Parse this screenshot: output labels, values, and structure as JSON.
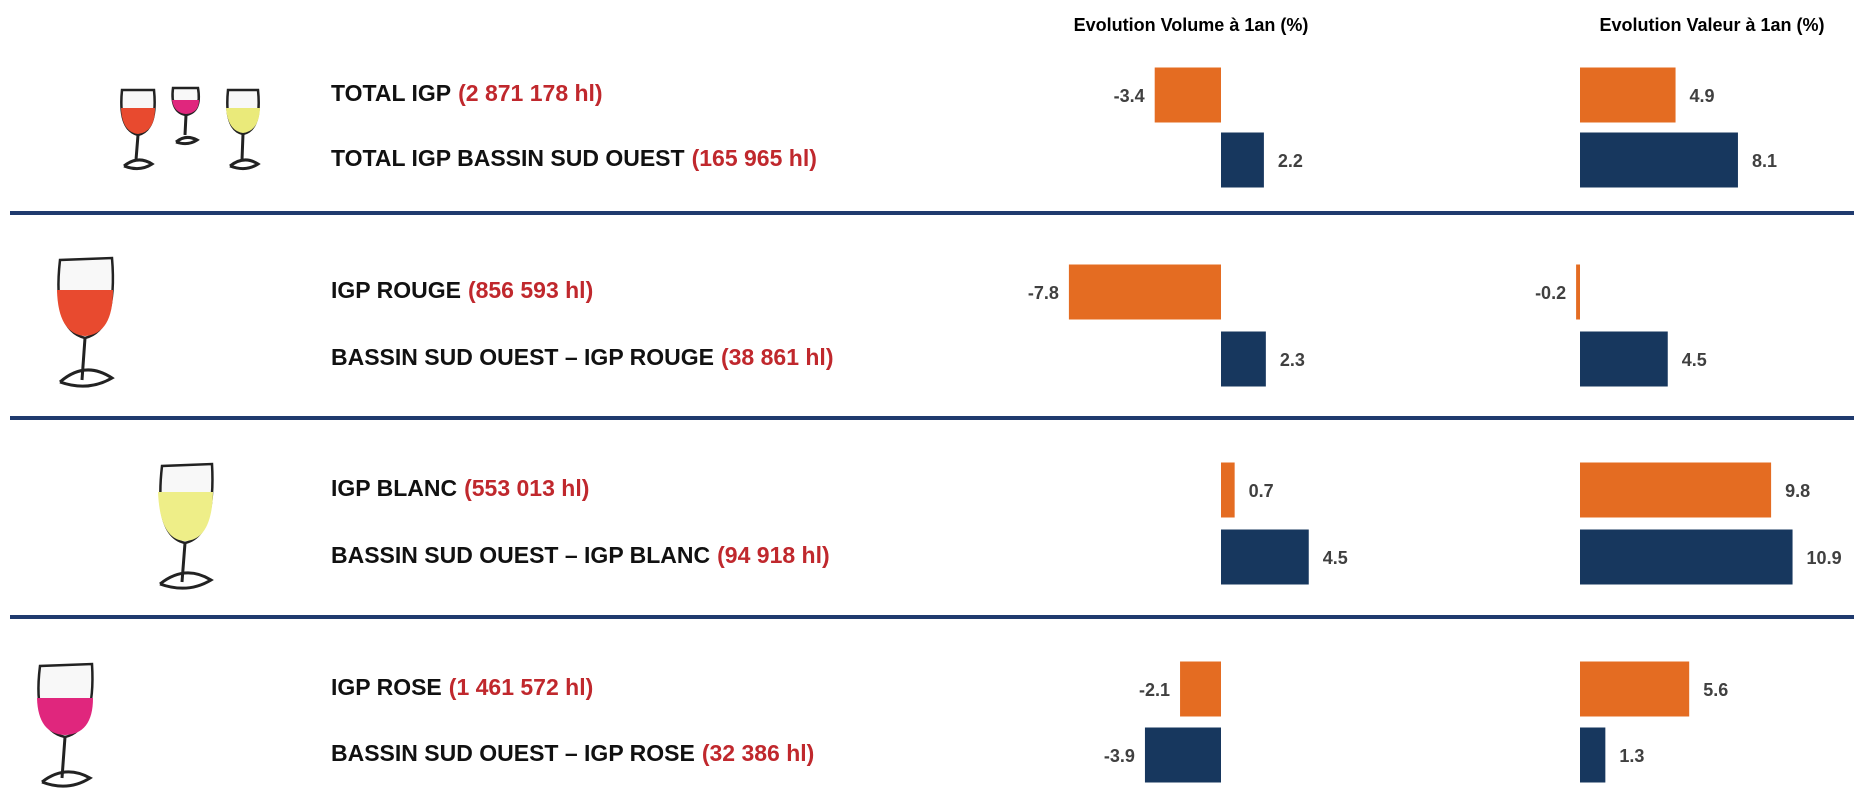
{
  "rows": [
    {
      "label": "TOTAL IGP",
      "volume": "(2 871 178 hl)"
    },
    {
      "label": "TOTAL IGP BASSIN SUD OUEST",
      "volume": "(165 965 hl)"
    },
    {
      "label": "IGP ROUGE",
      "volume": "(856 593 hl)"
    },
    {
      "label": "BASSIN SUD OUEST – IGP ROUGE",
      "volume": "(38 861 hl)"
    },
    {
      "label": "IGP BLANC",
      "volume": "(553 013 hl)"
    },
    {
      "label": "BASSIN SUD OUEST – IGP BLANC",
      "volume": "(94 918 hl)"
    },
    {
      "label": "IGP ROSE",
      "volume": "(1 461 572 hl)"
    },
    {
      "label": "BASSIN SUD OUEST – IGP ROSE",
      "volume": "(32 386 hl)"
    }
  ],
  "chart_data": [
    {
      "type": "hbar",
      "title": "Evolution Volume à 1an (%)",
      "values": [
        -3.4,
        2.2,
        -7.8,
        2.3,
        0.7,
        4.5,
        -2.1,
        -3.9
      ],
      "colors": [
        "#e46c22",
        "#17375e"
      ]
    },
    {
      "type": "hbar",
      "title": "Evolution Valeur à 1an (%)",
      "values": [
        4.9,
        8.1,
        -0.2,
        4.5,
        9.8,
        10.9,
        5.6,
        1.3
      ],
      "colors": [
        "#e46c22",
        "#17375e"
      ]
    }
  ]
}
